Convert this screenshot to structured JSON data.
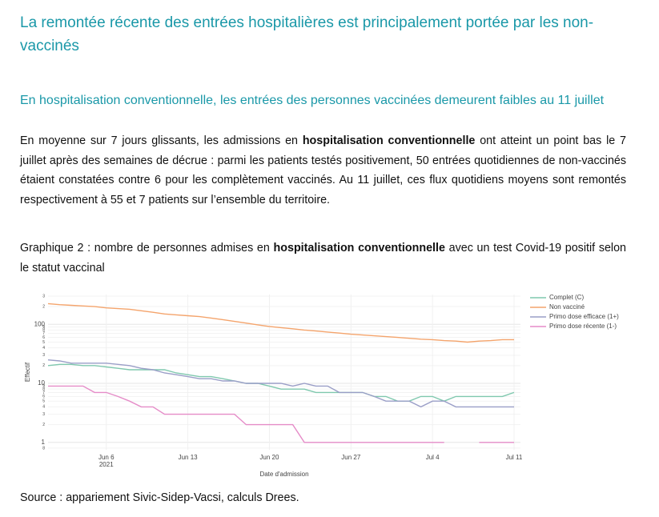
{
  "header": {
    "title": "La remontée récente des entrées hospitalières est principalement portée par les non-vaccinés"
  },
  "section": {
    "heading": "En hospitalisation conventionnelle, les entrées des personnes vaccinées demeurent faibles au 11 juillet",
    "body": [
      "En moyenne sur 7 jours glissants, les admissions en ",
      "hospitalisation conventionnelle",
      " ont atteint un point bas le 7 juillet après des semaines de décrue : parmi les patients testés positivement, 50 entrées quotidiennes de non-vaccinés étaient constatées contre 6 pour les complètement vaccinés. Au 11 juillet, ces flux quotidiens moyens sont remontés respectivement à 55 et 7 patients sur l’ensemble du territoire."
    ],
    "caption": [
      "Graphique 2 : nombre de personnes admises en ",
      "hospitalisation conventionnelle",
      " avec un test Covid-19 positif selon le statut vaccinal"
    ]
  },
  "chart_data": {
    "type": "line",
    "ylabel": "Effectif",
    "xlabel": "Date d'admission",
    "year_label": "2021",
    "log_scale": true,
    "grid": true,
    "legend": "top-right-outside",
    "xlim": [
      "2021-06-01",
      "2021-07-11"
    ],
    "xticks": [
      {
        "value": "2021-06-06",
        "label": "Jun 6"
      },
      {
        "value": "2021-06-13",
        "label": "Jun 13"
      },
      {
        "value": "2021-06-20",
        "label": "Jun 20"
      },
      {
        "value": "2021-06-27",
        "label": "Jun 27"
      },
      {
        "value": "2021-07-04",
        "label": "Jul 4"
      },
      {
        "value": "2021-07-11",
        "label": "Jul 11"
      }
    ],
    "ylim": [
      0.75,
      320
    ],
    "yticks": [
      {
        "value": 0.8,
        "label": "8"
      },
      1,
      2,
      3,
      4,
      5,
      6,
      7,
      8,
      9,
      10,
      {
        "value": 20,
        "label": "2"
      },
      {
        "value": 30,
        "label": "3"
      },
      {
        "value": 40,
        "label": "4"
      },
      {
        "value": 50,
        "label": "5"
      },
      {
        "value": 60,
        "label": "6"
      },
      {
        "value": 70,
        "label": "7"
      },
      {
        "value": 80,
        "label": "8"
      },
      {
        "value": 90,
        "label": "9"
      },
      100,
      {
        "value": 200,
        "label": "2"
      },
      {
        "value": 300,
        "label": "3"
      }
    ],
    "x": [
      "2021-06-01",
      "2021-06-02",
      "2021-06-03",
      "2021-06-04",
      "2021-06-05",
      "2021-06-06",
      "2021-06-07",
      "2021-06-08",
      "2021-06-09",
      "2021-06-10",
      "2021-06-11",
      "2021-06-12",
      "2021-06-13",
      "2021-06-14",
      "2021-06-15",
      "2021-06-16",
      "2021-06-17",
      "2021-06-18",
      "2021-06-19",
      "2021-06-20",
      "2021-06-21",
      "2021-06-22",
      "2021-06-23",
      "2021-06-24",
      "2021-06-25",
      "2021-06-26",
      "2021-06-27",
      "2021-06-28",
      "2021-06-29",
      "2021-06-30",
      "2021-07-01",
      "2021-07-02",
      "2021-07-03",
      "2021-07-04",
      "2021-07-05",
      "2021-07-06",
      "2021-07-07",
      "2021-07-08",
      "2021-07-09",
      "2021-07-10",
      "2021-07-11"
    ],
    "series": [
      {
        "name": "Complet (C)",
        "color": "#7fc8ae",
        "values": [
          20,
          21,
          21,
          20,
          20,
          19,
          18,
          17,
          17,
          17,
          17,
          15,
          14,
          13,
          13,
          12,
          11,
          10,
          10,
          9,
          8,
          8,
          8,
          7,
          7,
          7,
          7,
          7,
          6,
          6,
          5,
          5,
          6,
          6,
          5,
          6,
          6,
          6,
          6,
          6,
          7
        ]
      },
      {
        "name": "Non vacciné",
        "color": "#f4a46c",
        "values": [
          224,
          215,
          210,
          205,
          200,
          190,
          185,
          180,
          170,
          160,
          150,
          145,
          140,
          135,
          128,
          120,
          112,
          105,
          98,
          92,
          88,
          84,
          80,
          77,
          74,
          71,
          68,
          66,
          64,
          62,
          60,
          58,
          56,
          55,
          53,
          52,
          50,
          52,
          53,
          55,
          55
        ]
      },
      {
        "name": "Primo dose efficace (1+)",
        "color": "#9a9ec7",
        "values": [
          25,
          24,
          22,
          22,
          22,
          22,
          21,
          20,
          18,
          17,
          15,
          14,
          13,
          12,
          12,
          11,
          11,
          10,
          10,
          10,
          10,
          9,
          10,
          9,
          9,
          7,
          7,
          7,
          6,
          5,
          5,
          5,
          4,
          5,
          5,
          4,
          4,
          4,
          4,
          4,
          4
        ]
      },
      {
        "name": "Primo dose récente (1-)",
        "color": "#e58cc8",
        "values": [
          9,
          9,
          9,
          9,
          7,
          7,
          6,
          5,
          4,
          4,
          3,
          3,
          3,
          3,
          3,
          3,
          3,
          2,
          2,
          2,
          2,
          2,
          1,
          1,
          1,
          1,
          1,
          1,
          1,
          1,
          1,
          1,
          1,
          1,
          1,
          null,
          null,
          1,
          1,
          1,
          1
        ]
      }
    ]
  },
  "footer": {
    "source": "Source : appariement Sivic-Sidep-Vacsi, calculs Drees."
  }
}
